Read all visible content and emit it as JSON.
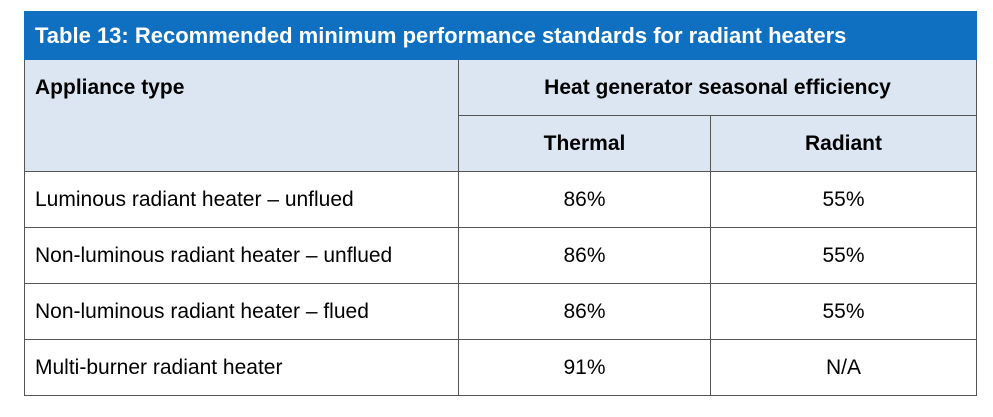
{
  "title": "Table 13: Recommended minimum performance standards for radiant heaters",
  "table": {
    "header": {
      "appliance_type": "Appliance type",
      "group": "Heat generator seasonal efficiency",
      "columns": [
        "Thermal",
        "Radiant"
      ]
    },
    "rows": [
      [
        "Luminous radiant heater – unflued",
        "86%",
        "55%"
      ],
      [
        "Non-luminous radiant heater – unflued",
        "86%",
        "55%"
      ],
      [
        "Non-luminous radiant heater – flued",
        "86%",
        "55%"
      ],
      [
        "Multi-burner radiant heater",
        "91%",
        "N/A"
      ]
    ]
  }
}
